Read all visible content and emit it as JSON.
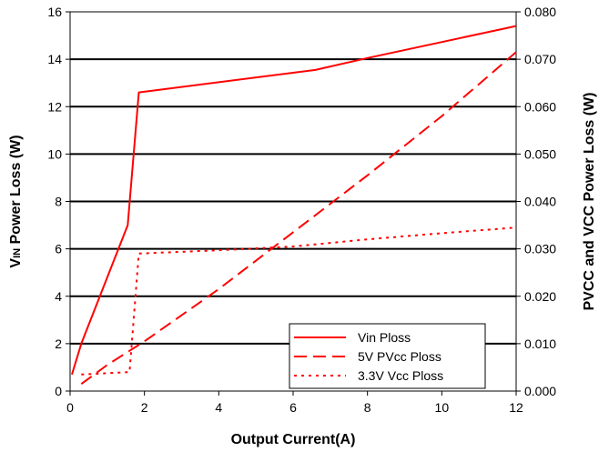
{
  "chart_data": {
    "type": "line",
    "title": "",
    "xlabel": "Output Current(A)",
    "ylabel_left_main": "V",
    "ylabel_left_sub": "IN",
    "ylabel_left_rest": " Power Loss (W)",
    "ylabel_right": "PVCC and VCC Power Loss (W)",
    "xlim": [
      0,
      12
    ],
    "ylim_left": [
      0,
      16
    ],
    "ylim_right": [
      0,
      0.08
    ],
    "x_ticks": [
      "0",
      "2",
      "4",
      "6",
      "8",
      "10",
      "12"
    ],
    "y_left_ticks": [
      "0",
      "2",
      "4",
      "6",
      "8",
      "10",
      "12",
      "14",
      "16"
    ],
    "y_right_ticks": [
      "0.000",
      "0.010",
      "0.020",
      "0.030",
      "0.040",
      "0.050",
      "0.060",
      "0.070",
      "0.080"
    ],
    "grid": "horizontal",
    "legend_position": "bottom-right",
    "series": [
      {
        "name": "Vin Ploss",
        "axis": "left",
        "dash": "solid",
        "color": "#ff0000",
        "points": [
          [
            0.05,
            0.7
          ],
          [
            0.3,
            2.0
          ],
          [
            0.8,
            4.0
          ],
          [
            1.55,
            7.0
          ],
          [
            1.85,
            12.6
          ],
          [
            6.6,
            13.55
          ],
          [
            8.0,
            14.05
          ],
          [
            12.0,
            15.4
          ]
        ]
      },
      {
        "name": "5V PVcc Ploss",
        "axis": "right",
        "dash": "dashed",
        "color": "#ff0000",
        "points": [
          [
            0.3,
            0.0015
          ],
          [
            1.0,
            0.0055
          ],
          [
            2.0,
            0.0105
          ],
          [
            4.0,
            0.0215
          ],
          [
            6.0,
            0.0335
          ],
          [
            8.0,
            0.0455
          ],
          [
            10.0,
            0.058
          ],
          [
            12.0,
            0.0715
          ]
        ]
      },
      {
        "name": "3.3V Vcc Ploss",
        "axis": "right",
        "dash": "dotted",
        "color": "#ff0000",
        "points": [
          [
            0.3,
            0.0035
          ],
          [
            1.6,
            0.004
          ],
          [
            1.85,
            0.029
          ],
          [
            4.0,
            0.0297
          ],
          [
            6.0,
            0.0305
          ],
          [
            8.0,
            0.032
          ],
          [
            10.0,
            0.0333
          ],
          [
            12.0,
            0.0345
          ]
        ]
      }
    ]
  }
}
